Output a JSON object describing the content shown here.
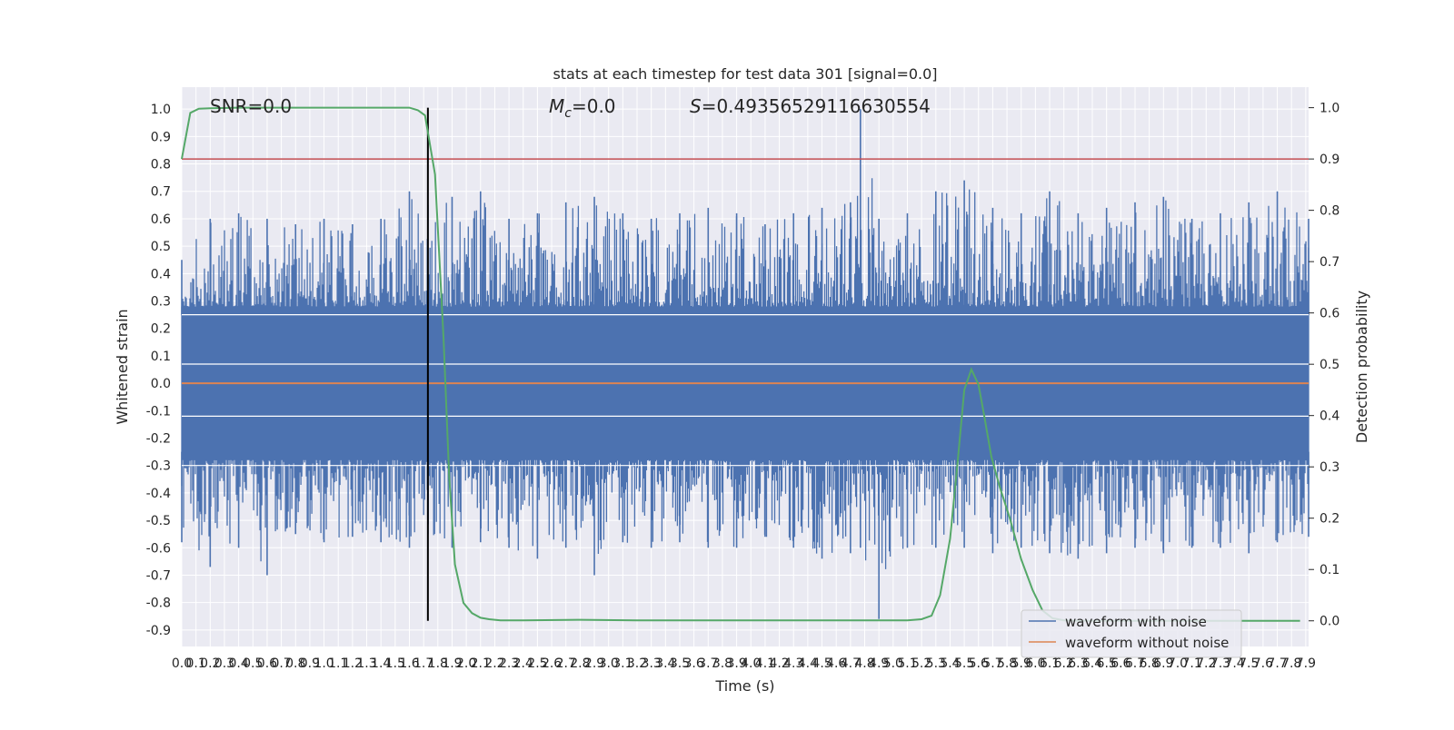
{
  "chart_data": {
    "type": "line",
    "title": "stats at each timestep for test data 301 [signal=0.0]",
    "xlabel": "Time (s)",
    "ylabel_left": "Whitened strain",
    "ylabel_right": "Detection probability",
    "xlim": [
      0,
      7.92
    ],
    "ylim_left": [
      -0.96,
      1.08
    ],
    "ylim_right": [
      -0.05,
      1.04
    ],
    "x_ticks": [
      "0.0",
      "0.1",
      "0.2",
      "0.3",
      "0.4",
      "0.5",
      "0.6",
      "0.7",
      "0.8",
      "0.9",
      "1.0",
      "1.1",
      "1.2",
      "1.3",
      "1.4",
      "1.5",
      "1.6",
      "1.7",
      "1.8",
      "1.9",
      "2.0",
      "2.1",
      "2.2",
      "2.3",
      "2.4",
      "2.5",
      "2.6",
      "2.7",
      "2.8",
      "2.9",
      "3.0",
      "3.1",
      "3.2",
      "3.3",
      "3.4",
      "3.5",
      "3.6",
      "3.7",
      "3.8",
      "3.9",
      "4.0",
      "4.1",
      "4.2",
      "4.3",
      "4.4",
      "4.5",
      "4.6",
      "4.7",
      "4.8",
      "4.9",
      "5.0",
      "5.1",
      "5.2",
      "5.3",
      "5.4",
      "5.5",
      "5.6",
      "5.7",
      "5.8",
      "5.9",
      "6.0",
      "6.1",
      "6.2",
      "6.3",
      "6.4",
      "6.5",
      "6.6",
      "6.7",
      "6.8",
      "6.9",
      "7.0",
      "7.1",
      "7.2",
      "7.3",
      "7.4",
      "7.5",
      "7.6",
      "7.7",
      "7.8",
      "7.9"
    ],
    "y_ticks_left": [
      "1.0",
      "0.9",
      "0.8",
      "0.7",
      "0.6",
      "0.5",
      "0.4",
      "0.3",
      "0.2",
      "0.1",
      "0.0",
      "-0.1",
      "-0.2",
      "-0.3",
      "-0.4",
      "-0.5",
      "-0.6",
      "-0.7",
      "-0.8",
      "-0.9"
    ],
    "y_ticks_right": [
      "1.0",
      "0.9",
      "0.8",
      "0.7",
      "0.6",
      "0.5",
      "0.4",
      "0.3",
      "0.2",
      "0.1",
      "0.0"
    ],
    "annotations": {
      "snr": "SNR=0.0",
      "mc": "=0.0",
      "s": "=0.49356529116630554"
    },
    "grid": true,
    "legend_position": "bottom-right",
    "series": [
      {
        "name": "waveform with noise",
        "color": "#4c72b0",
        "axis": "left",
        "envelope_x": [
          0.0,
          0.2,
          0.4,
          0.6,
          0.8,
          1.0,
          1.2,
          1.4,
          1.6,
          1.73,
          1.9,
          2.1,
          2.3,
          2.5,
          2.7,
          2.9,
          3.1,
          3.3,
          3.5,
          3.7,
          3.9,
          4.1,
          4.3,
          4.5,
          4.7,
          4.77,
          4.9,
          5.1,
          5.3,
          5.5,
          5.7,
          5.9,
          6.1,
          6.3,
          6.5,
          6.7,
          6.9,
          7.1,
          7.3,
          7.5,
          7.7,
          7.92
        ],
        "envelope_max": [
          0.45,
          0.6,
          0.62,
          0.6,
          0.58,
          0.6,
          0.58,
          0.6,
          0.7,
          0.65,
          0.68,
          0.7,
          0.6,
          0.62,
          0.66,
          0.68,
          0.62,
          0.6,
          0.62,
          0.64,
          0.62,
          0.58,
          0.62,
          0.64,
          0.66,
          1.0,
          0.6,
          0.62,
          0.7,
          0.74,
          0.64,
          0.62,
          0.7,
          0.62,
          0.64,
          0.66,
          0.68,
          0.6,
          0.62,
          0.66,
          0.7,
          0.6
        ],
        "envelope_min": [
          -0.58,
          -0.67,
          -0.6,
          -0.7,
          -0.55,
          -0.58,
          -0.56,
          -0.58,
          -0.6,
          -0.55,
          -0.6,
          -0.58,
          -0.6,
          -0.64,
          -0.6,
          -0.7,
          -0.58,
          -0.6,
          -0.58,
          -0.6,
          -0.6,
          -0.56,
          -0.6,
          -0.64,
          -0.62,
          -0.6,
          -0.86,
          -0.6,
          -0.6,
          -0.6,
          -0.62,
          -0.6,
          -0.62,
          -0.64,
          -0.62,
          -0.6,
          -0.62,
          -0.6,
          -0.6,
          -0.62,
          -0.58,
          -0.56
        ]
      },
      {
        "name": "waveform without noise",
        "color": "#dd8452",
        "axis": "left",
        "x": [
          0.0,
          7.92
        ],
        "y": [
          0.0,
          0.0
        ]
      },
      {
        "name": "detection probability",
        "color": "#55a868",
        "axis": "right",
        "x": [
          0.0,
          0.06,
          0.12,
          0.2,
          0.4,
          0.8,
          1.2,
          1.6,
          1.66,
          1.71,
          1.78,
          1.84,
          1.88,
          1.92,
          1.98,
          2.04,
          2.1,
          2.16,
          2.24,
          2.4,
          2.8,
          3.2,
          3.6,
          4.0,
          4.4,
          4.8,
          5.1,
          5.2,
          5.27,
          5.33,
          5.4,
          5.45,
          5.5,
          5.55,
          5.6,
          5.64,
          5.69,
          5.75,
          5.82,
          5.9,
          5.98,
          6.05,
          6.12,
          6.2,
          6.3,
          6.45,
          6.6,
          7.0,
          7.4,
          7.86
        ],
        "y": [
          0.9,
          0.99,
          0.998,
          0.999,
          1.0,
          1.0,
          1.0,
          1.0,
          0.995,
          0.985,
          0.87,
          0.55,
          0.28,
          0.11,
          0.035,
          0.015,
          0.006,
          0.003,
          0.001,
          0.001,
          0.002,
          0.001,
          0.001,
          0.001,
          0.001,
          0.001,
          0.001,
          0.003,
          0.01,
          0.05,
          0.16,
          0.3,
          0.45,
          0.49,
          0.46,
          0.4,
          0.32,
          0.26,
          0.2,
          0.12,
          0.06,
          0.02,
          0.005,
          0.001,
          0.0,
          0.0,
          0.0,
          0.0,
          0.0,
          0.0
        ]
      }
    ],
    "threshold_line": {
      "color": "#c44e52",
      "axis": "right",
      "y": 0.9
    },
    "marker_line": {
      "color": "#000000",
      "x": 1.73
    }
  }
}
